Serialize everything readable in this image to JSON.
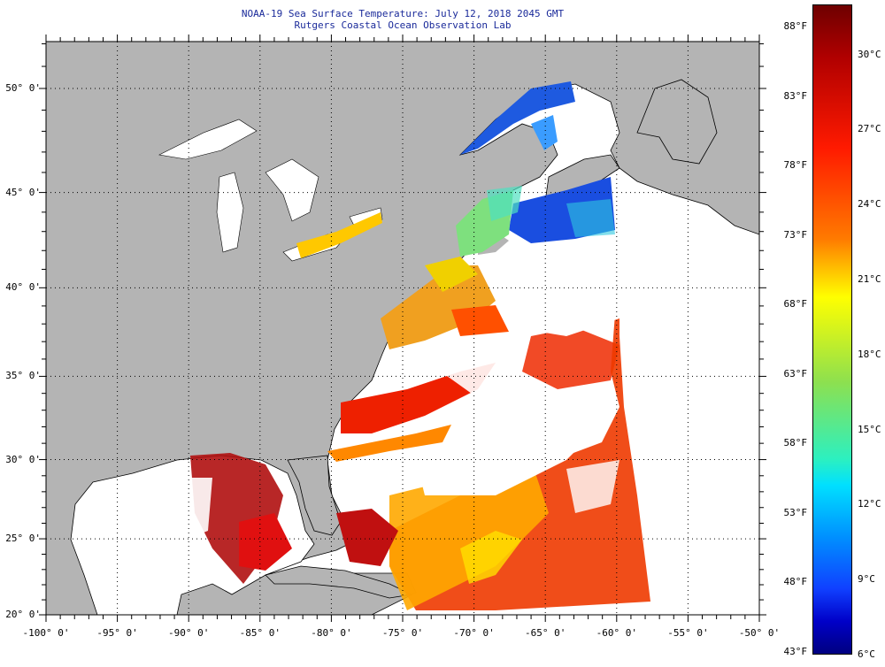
{
  "header": {
    "title": "NOAA-19 Sea Surface Temperature:  July 12, 2018 2045 GMT",
    "subtitle": "Rutgers Coastal Ocean Observation Lab"
  },
  "map": {
    "lon_range": [
      -100,
      -50
    ],
    "lat_range": [
      20,
      52.5
    ],
    "lon_labels": [
      {
        "value": -100,
        "text": "-100° 0'"
      },
      {
        "value": -95,
        "text": "-95° 0'"
      },
      {
        "value": -90,
        "text": "-90° 0'"
      },
      {
        "value": -85,
        "text": "-85° 0'"
      },
      {
        "value": -80,
        "text": "-80° 0'"
      },
      {
        "value": -75,
        "text": "-75° 0'"
      },
      {
        "value": -70,
        "text": "-70° 0'"
      },
      {
        "value": -65,
        "text": "-65° 0'"
      },
      {
        "value": -60,
        "text": "-60° 0'"
      },
      {
        "value": -55,
        "text": "-55° 0'"
      },
      {
        "value": -50,
        "text": "-50° 0'"
      }
    ],
    "lat_labels": [
      {
        "value": 20,
        "text": "20° 0'"
      },
      {
        "value": 25,
        "text": "25° 0'"
      },
      {
        "value": 30,
        "text": "30° 0'"
      },
      {
        "value": 35,
        "text": "35° 0'"
      },
      {
        "value": 40,
        "text": "40° 0'"
      },
      {
        "value": 45,
        "text": "45° 0'"
      },
      {
        "value": 50,
        "text": "50° 0'"
      }
    ],
    "colors": {
      "land": "#b4b4b4",
      "cloud": "#ffffff"
    }
  },
  "colorbar": {
    "range_c": [
      6,
      32
    ],
    "fahrenheit_labels": [
      {
        "value": 88,
        "text": "88°F"
      },
      {
        "value": 83,
        "text": "83°F"
      },
      {
        "value": 78,
        "text": "78°F"
      },
      {
        "value": 73,
        "text": "73°F"
      },
      {
        "value": 68,
        "text": "68°F"
      },
      {
        "value": 63,
        "text": "63°F"
      },
      {
        "value": 58,
        "text": "58°F"
      },
      {
        "value": 53,
        "text": "53°F"
      },
      {
        "value": 48,
        "text": "48°F"
      },
      {
        "value": 43,
        "text": "43°F"
      }
    ],
    "celsius_labels": [
      {
        "value": 30,
        "text": "30°C"
      },
      {
        "value": 27,
        "text": "27°C"
      },
      {
        "value": 24,
        "text": "24°C"
      },
      {
        "value": 21,
        "text": "21°C"
      },
      {
        "value": 18,
        "text": "18°C"
      },
      {
        "value": 15,
        "text": "15°C"
      },
      {
        "value": 12,
        "text": "12°C"
      },
      {
        "value": 9,
        "text": "9°C"
      },
      {
        "value": 6,
        "text": "6°C"
      }
    ]
  }
}
